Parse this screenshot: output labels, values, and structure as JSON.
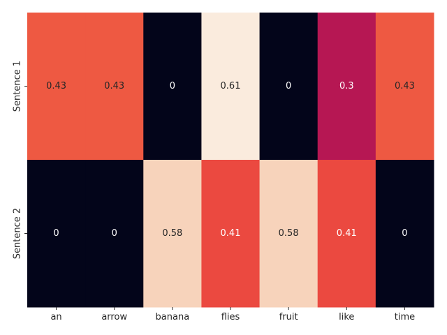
{
  "chart_data": {
    "type": "heatmap",
    "title": "",
    "xlabel": "",
    "ylabel": "",
    "x_categories": [
      "an",
      "arrow",
      "banana",
      "flies",
      "fruit",
      "like",
      "time"
    ],
    "y_categories": [
      "Sentence 1",
      "Sentence 2"
    ],
    "values": [
      [
        0.43,
        0.43,
        0,
        0.61,
        0,
        0.3,
        0.43
      ],
      [
        0,
        0,
        0.58,
        0.41,
        0.58,
        0.41,
        0
      ]
    ],
    "value_labels": [
      [
        "0.43",
        "0.43",
        "0",
        "0.61",
        "0",
        "0.3",
        "0.43"
      ],
      [
        "0",
        "0",
        "0.58",
        "0.41",
        "0.58",
        "0.41",
        "0"
      ]
    ],
    "colormap": "rocket",
    "value_range": [
      0,
      0.61
    ],
    "colorbar": false,
    "annotated": true
  }
}
